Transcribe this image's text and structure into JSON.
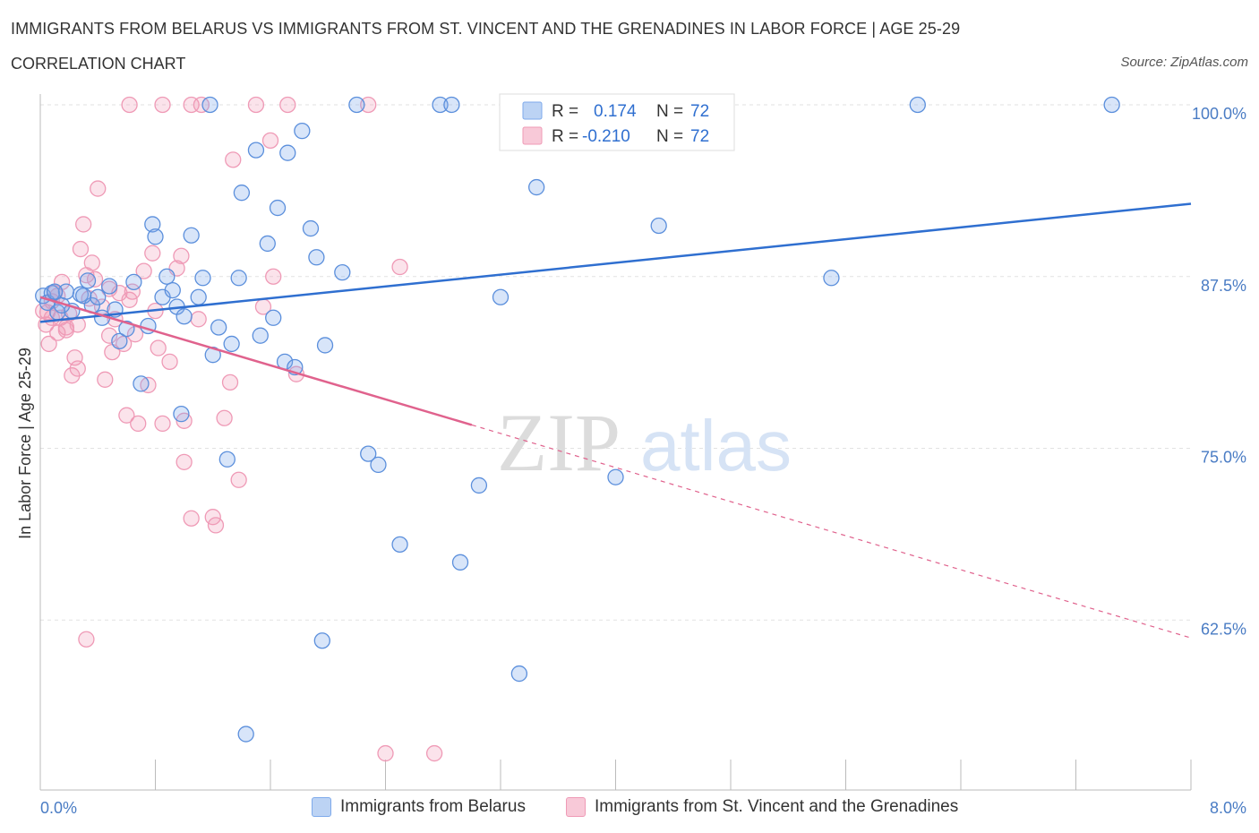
{
  "header": {
    "title": "IMMIGRANTS FROM BELARUS VS IMMIGRANTS FROM ST. VINCENT AND THE GRENADINES IN LABOR FORCE | AGE 25-29",
    "subtitle": "CORRELATION CHART",
    "source": "Source: ZipAtlas.com"
  },
  "colors": {
    "blue": "#7eaaeb",
    "blue_line": "#2f6fd0",
    "pink": "#ef9ab6",
    "pink_line": "#e0628d"
  },
  "legend": {
    "r_label": "R =",
    "n_label": "N =",
    "blue_r": "0.174",
    "blue_n": "72",
    "pink_r": "-0.210",
    "pink_n": "72"
  },
  "bottom_legend": {
    "blue_label": "Immigrants from Belarus",
    "pink_label": "Immigrants from St. Vincent and the Grenadines"
  },
  "watermark": {
    "zip": "ZIP",
    "atlas": "atlas"
  },
  "chart_data": {
    "type": "scatter",
    "title": "IMMIGRANTS FROM BELARUS VS IMMIGRANTS FROM ST. VINCENT AND THE GRENADINES IN LABOR FORCE | AGE 25-29",
    "xlabel": "",
    "ylabel": "In Labor Force | Age 25-29",
    "xlim": [
      0,
      8
    ],
    "ylim": [
      50,
      100
    ],
    "x_tick_labels": [
      "0.0%",
      "8.0%"
    ],
    "y_ticks": [
      62.5,
      75.0,
      87.5,
      100.0
    ],
    "y_tick_labels": [
      "62.5%",
      "75.0%",
      "87.5%",
      "100.0%"
    ],
    "series": [
      {
        "name": "Immigrants from Belarus",
        "color": "#7eaaeb",
        "trend": {
          "x": [
            0,
            8
          ],
          "y": [
            84.2,
            92.8
          ],
          "dashed_from": null
        },
        "points": [
          [
            0.02,
            86.1
          ],
          [
            0.05,
            85.6
          ],
          [
            0.08,
            86.3
          ],
          [
            0.12,
            84.9
          ],
          [
            0.18,
            86.4
          ],
          [
            0.22,
            85.0
          ],
          [
            0.28,
            86.2
          ],
          [
            0.33,
            87.2
          ],
          [
            0.36,
            85.4
          ],
          [
            0.4,
            86.0
          ],
          [
            0.43,
            84.5
          ],
          [
            0.48,
            86.8
          ],
          [
            0.52,
            85.1
          ],
          [
            0.55,
            82.8
          ],
          [
            0.6,
            83.7
          ],
          [
            0.65,
            87.1
          ],
          [
            0.7,
            79.7
          ],
          [
            0.75,
            83.9
          ],
          [
            0.78,
            91.3
          ],
          [
            0.8,
            90.4
          ],
          [
            0.85,
            86.0
          ],
          [
            0.88,
            87.5
          ],
          [
            0.92,
            86.5
          ],
          [
            0.95,
            85.3
          ],
          [
            0.98,
            77.5
          ],
          [
            1.0,
            84.6
          ],
          [
            1.05,
            90.5
          ],
          [
            1.1,
            86.0
          ],
          [
            1.13,
            87.4
          ],
          [
            1.2,
            81.8
          ],
          [
            1.24,
            83.8
          ],
          [
            1.3,
            74.2
          ],
          [
            1.33,
            82.6
          ],
          [
            1.38,
            87.4
          ],
          [
            1.4,
            93.6
          ],
          [
            1.5,
            96.7
          ],
          [
            1.53,
            83.2
          ],
          [
            1.58,
            89.9
          ],
          [
            1.62,
            84.5
          ],
          [
            1.65,
            92.5
          ],
          [
            1.7,
            81.3
          ],
          [
            1.72,
            96.5
          ],
          [
            1.77,
            80.9
          ],
          [
            1.82,
            98.1
          ],
          [
            1.88,
            91.0
          ],
          [
            1.92,
            88.9
          ],
          [
            1.96,
            61.0
          ],
          [
            1.98,
            82.5
          ],
          [
            2.1,
            87.8
          ],
          [
            2.2,
            100.0
          ],
          [
            2.28,
            74.6
          ],
          [
            2.35,
            73.8
          ],
          [
            2.5,
            68.0
          ],
          [
            2.78,
            100.0
          ],
          [
            2.86,
            100.0
          ],
          [
            2.92,
            66.7
          ],
          [
            3.05,
            72.3
          ],
          [
            3.2,
            86.0
          ],
          [
            3.33,
            58.6
          ],
          [
            3.45,
            94.0
          ],
          [
            3.5,
            100.0
          ],
          [
            3.75,
            100.0
          ],
          [
            4.0,
            72.9
          ],
          [
            4.3,
            91.2
          ],
          [
            5.5,
            87.4
          ],
          [
            6.1,
            100.0
          ],
          [
            7.45,
            100.0
          ],
          [
            1.43,
            54.2
          ],
          [
            0.3,
            86.1
          ],
          [
            0.1,
            86.4
          ],
          [
            0.15,
            85.4
          ],
          [
            1.18,
            100.0
          ]
        ]
      },
      {
        "name": "Immigrants from St. Vincent and the Grenadines",
        "color": "#ef9ab6",
        "trend": {
          "x": [
            0,
            8
          ],
          "y": [
            86.0,
            61.2
          ],
          "dashed_from": 3.0
        },
        "points": [
          [
            0.02,
            85.0
          ],
          [
            0.04,
            84.0
          ],
          [
            0.06,
            82.6
          ],
          [
            0.08,
            85.7
          ],
          [
            0.1,
            86.3
          ],
          [
            0.12,
            83.4
          ],
          [
            0.14,
            84.5
          ],
          [
            0.15,
            87.1
          ],
          [
            0.18,
            83.6
          ],
          [
            0.2,
            84.8
          ],
          [
            0.22,
            80.3
          ],
          [
            0.24,
            81.6
          ],
          [
            0.26,
            80.8
          ],
          [
            0.28,
            89.5
          ],
          [
            0.3,
            91.3
          ],
          [
            0.32,
            87.6
          ],
          [
            0.34,
            85.9
          ],
          [
            0.36,
            88.5
          ],
          [
            0.38,
            87.3
          ],
          [
            0.4,
            93.9
          ],
          [
            0.43,
            85.3
          ],
          [
            0.45,
            80.0
          ],
          [
            0.48,
            83.2
          ],
          [
            0.5,
            82.0
          ],
          [
            0.52,
            84.4
          ],
          [
            0.55,
            86.3
          ],
          [
            0.58,
            82.6
          ],
          [
            0.6,
            77.4
          ],
          [
            0.62,
            85.8
          ],
          [
            0.64,
            86.4
          ],
          [
            0.66,
            83.3
          ],
          [
            0.68,
            76.8
          ],
          [
            0.72,
            87.9
          ],
          [
            0.75,
            79.6
          ],
          [
            0.78,
            89.2
          ],
          [
            0.8,
            85.0
          ],
          [
            0.82,
            82.3
          ],
          [
            0.85,
            76.8
          ],
          [
            0.9,
            81.3
          ],
          [
            0.95,
            88.1
          ],
          [
            0.98,
            89.0
          ],
          [
            1.0,
            77.0
          ],
          [
            1.0,
            74.0
          ],
          [
            1.05,
            69.9
          ],
          [
            1.1,
            84.4
          ],
          [
            1.12,
            100.0
          ],
          [
            1.2,
            70.0
          ],
          [
            1.22,
            69.4
          ],
          [
            1.28,
            77.2
          ],
          [
            1.32,
            79.8
          ],
          [
            1.34,
            96.0
          ],
          [
            1.38,
            72.7
          ],
          [
            1.5,
            100.0
          ],
          [
            1.55,
            85.3
          ],
          [
            1.6,
            97.4
          ],
          [
            1.62,
            87.5
          ],
          [
            1.72,
            100.0
          ],
          [
            1.78,
            80.4
          ],
          [
            2.28,
            100.0
          ],
          [
            2.4,
            52.8
          ],
          [
            2.5,
            88.2
          ],
          [
            2.74,
            52.8
          ],
          [
            0.48,
            86.6
          ],
          [
            1.05,
            100.0
          ],
          [
            0.62,
            100.0
          ],
          [
            0.85,
            100.0
          ],
          [
            0.32,
            61.1
          ],
          [
            0.05,
            84.9
          ],
          [
            0.08,
            84.5
          ],
          [
            0.18,
            83.8
          ],
          [
            0.26,
            84.0
          ],
          [
            0.12,
            86.1
          ]
        ]
      }
    ]
  }
}
